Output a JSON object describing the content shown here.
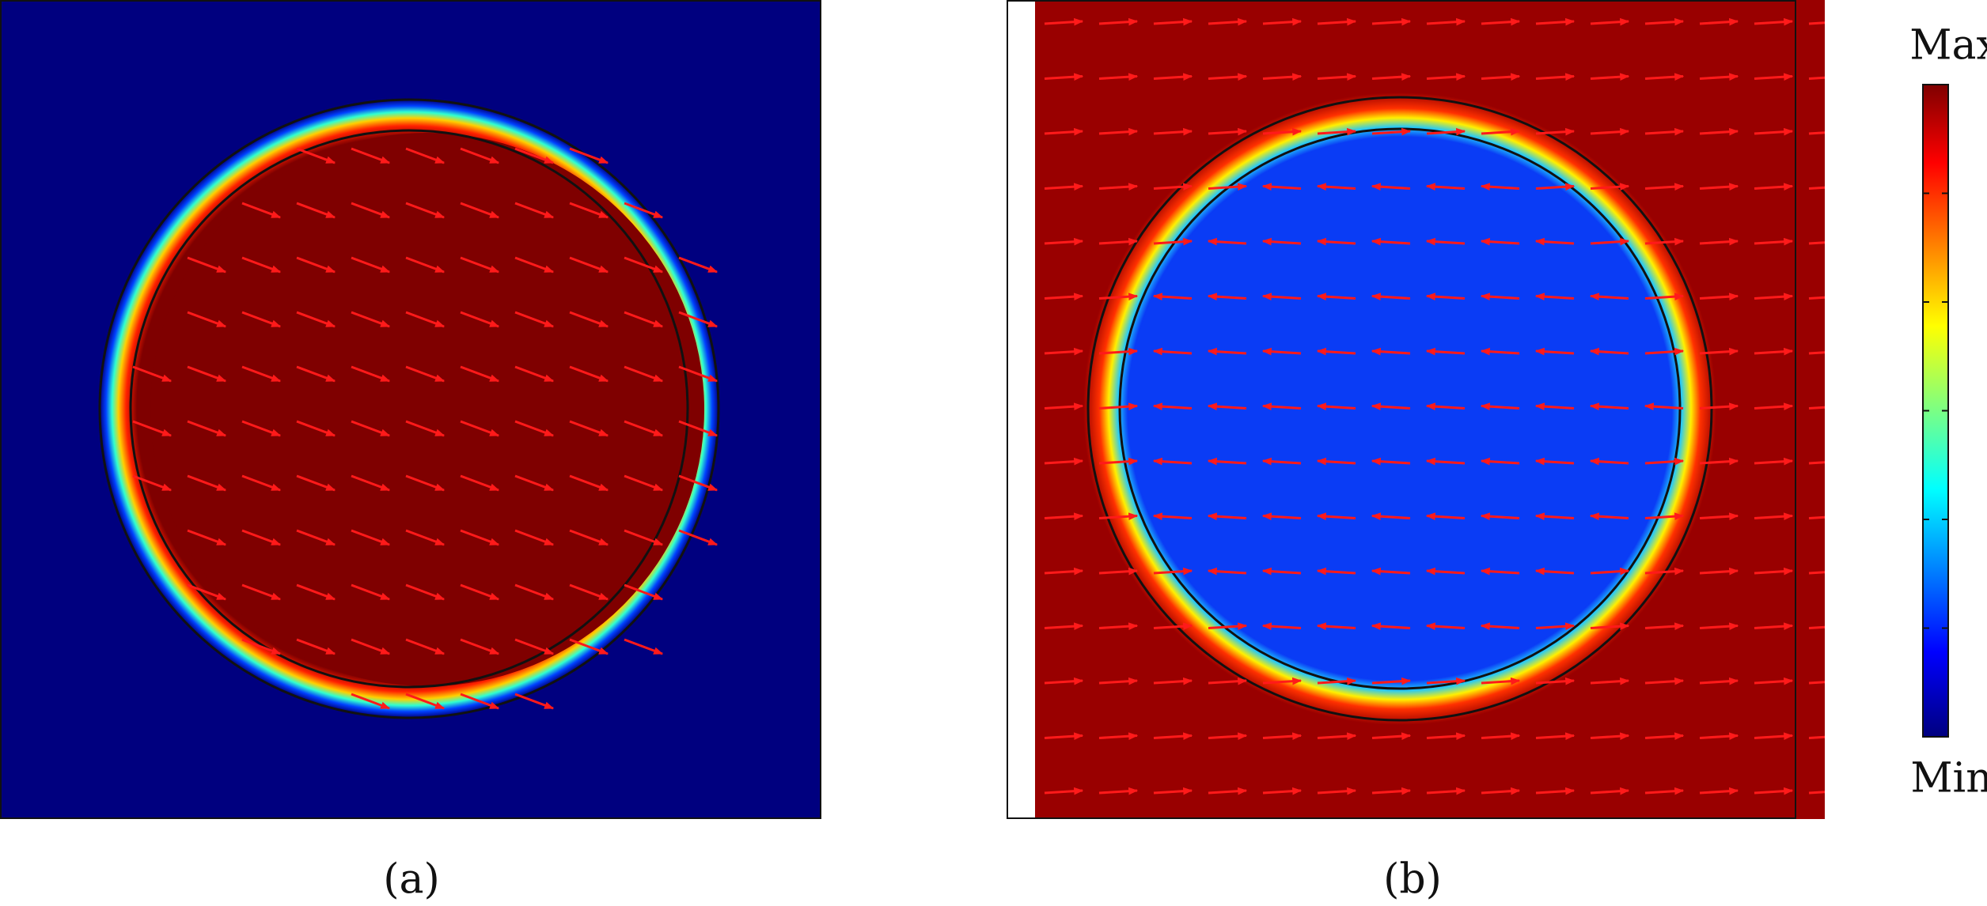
{
  "colorbar": {
    "max_label": "Max",
    "min_label": "Min"
  },
  "panels": [
    {
      "label": "(a)"
    },
    {
      "label": "(b)"
    }
  ]
}
